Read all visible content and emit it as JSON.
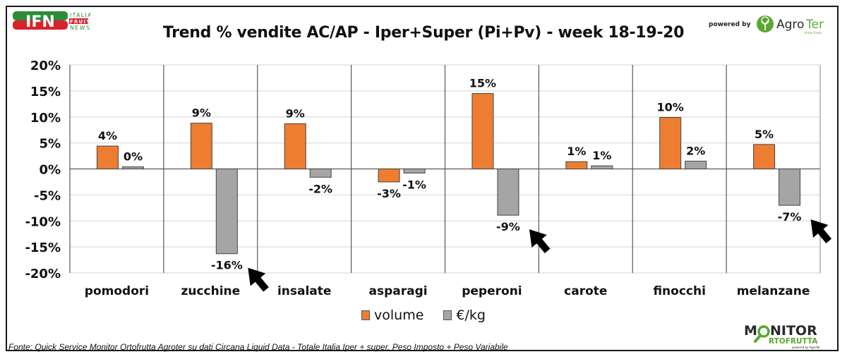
{
  "header": {
    "title": "Trend % vendite AC/AP -  Iper+Super (Pi+Pv) - week 18-19-20",
    "powered_by": "powered by",
    "logo_left": "IFN ITALIA FRUIT NEWS",
    "logo_right": "AgroTer think fresh"
  },
  "footer": {
    "source": "Fonte: Quick Service Monitor Ortofrutta Agroter su dati Circana Liquid Data - Totale Italia Iper + super, Peso Imposto + Peso Variabile",
    "logo": "MONITOR ORTOFRUTTA powered by AgroTer"
  },
  "colors": {
    "volume": "#ED7D31",
    "price": "#A5A5A5",
    "arrow": "#000000"
  },
  "chart_data": {
    "type": "bar",
    "title": "Trend % vendite AC/AP -  Iper+Super (Pi+Pv) - week 18-19-20",
    "xlabel": "",
    "ylabel": "",
    "ylim": [
      -20,
      20
    ],
    "yticks": [
      20,
      15,
      10,
      5,
      0,
      -5,
      -10,
      -15,
      -20
    ],
    "ytick_labels": [
      "20%",
      "15%",
      "10%",
      "5%",
      "0%",
      "-5%",
      "-10%",
      "-15%",
      "-20%"
    ],
    "grid": true,
    "legend_position": "bottom",
    "categories": [
      "pomodori",
      "zucchine",
      "insalate",
      "asparagi",
      "peperoni",
      "carote",
      "finocchi",
      "melanzane"
    ],
    "series": [
      {
        "name": "volume",
        "values": [
          4.4,
          8.8,
          8.7,
          -2.5,
          14.5,
          1.4,
          9.9,
          4.7
        ],
        "labels": [
          "4%",
          "9%",
          "9%",
          "-3%",
          "15%",
          "1%",
          "10%",
          "5%"
        ]
      },
      {
        "name": "€/kg",
        "values": [
          0.4,
          -16.3,
          -1.6,
          -0.8,
          -8.9,
          0.6,
          1.5,
          -7.0
        ],
        "labels": [
          "0%",
          "-16%",
          "-2%",
          "-1%",
          "-9%",
          "1%",
          "2%",
          "-7%"
        ]
      }
    ],
    "annotations": [
      {
        "type": "arrow",
        "category": "zucchine",
        "series": "€/kg"
      },
      {
        "type": "arrow",
        "category": "peperoni",
        "series": "€/kg"
      },
      {
        "type": "arrow",
        "category": "melanzane",
        "series": "€/kg"
      }
    ]
  }
}
